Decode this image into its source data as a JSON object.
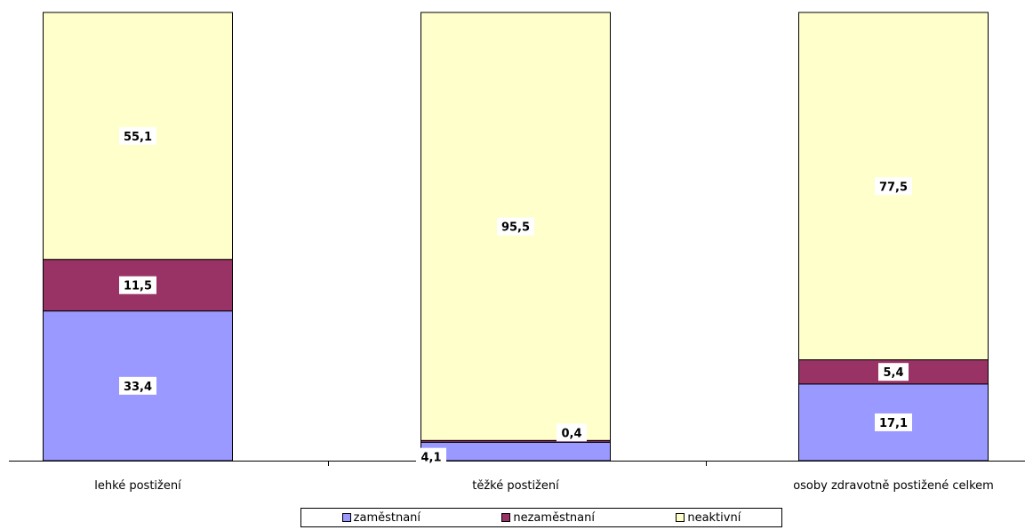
{
  "chart_data": {
    "type": "bar",
    "stacked": true,
    "categories": [
      "lehké postižení",
      "těžké postižení",
      "osoby zdravotně postižené celkem"
    ],
    "series": [
      {
        "name": "zaměstnaní",
        "color": "#9999ff",
        "values": [
          33.4,
          4.1,
          17.1
        ],
        "labels": [
          "33,4",
          "4,1",
          "17,1"
        ]
      },
      {
        "name": "nezaměstnaní",
        "color": "#993366",
        "values": [
          11.5,
          0.4,
          5.4
        ],
        "labels": [
          "11,5",
          "0,4",
          "5,4"
        ]
      },
      {
        "name": "neaktivní",
        "color": "#ffffcc",
        "values": [
          55.1,
          95.5,
          77.5
        ],
        "labels": [
          "55,1",
          "95,5",
          "77,5"
        ]
      }
    ],
    "ylim": [
      0,
      100
    ],
    "grid": false,
    "legend_position": "bottom"
  }
}
